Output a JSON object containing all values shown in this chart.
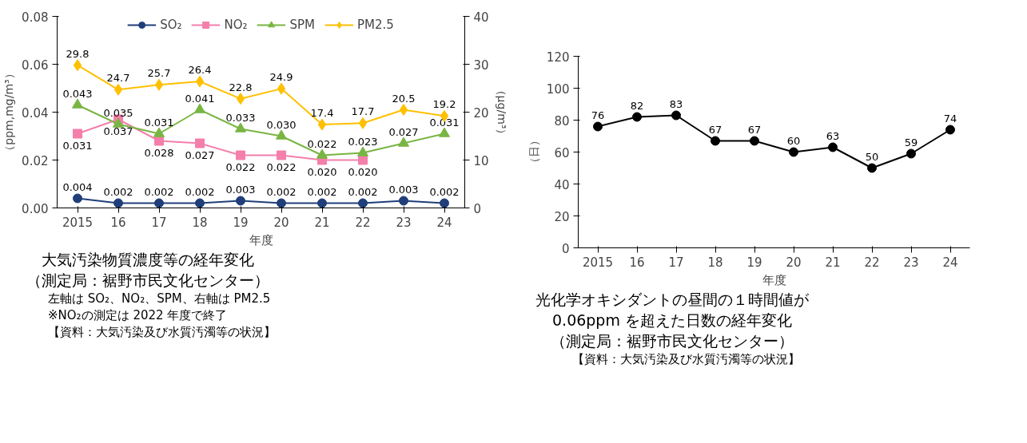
{
  "chart_data": [
    {
      "type": "line",
      "title": "大気汚染物質濃度等の経年変化",
      "subtitle": "（測定局：裾野市民文化センター）",
      "categories": [
        "2015",
        "16",
        "17",
        "18",
        "19",
        "20",
        "21",
        "22",
        "23",
        "24"
      ],
      "xlabel": "年度",
      "ylabel": "（ppm,mg/m³）",
      "y2label": "（μg/m³）",
      "ylim": [
        0,
        0.08
      ],
      "yticks": [
        {
          "value": 0,
          "label": "0.00"
        },
        {
          "value": 0.02,
          "label": "0.02"
        },
        {
          "value": 0.04,
          "label": "0.04"
        },
        {
          "value": 0.06,
          "label": "0.06"
        },
        {
          "value": 0.08,
          "label": "0.08"
        }
      ],
      "y2lim": [
        0,
        40
      ],
      "y2ticks": [
        0,
        10,
        20,
        30,
        40
      ],
      "grid": false,
      "legend": "top",
      "line_style": "solid",
      "series": [
        {
          "name": "SO₂",
          "color": "#203f7a",
          "marker": "circle",
          "values": [
            0.004,
            0.002,
            0.002,
            0.002,
            0.003,
            0.002,
            0.002,
            0.002,
            0.003,
            0.002
          ],
          "value_labels": [
            "0.004",
            "0.002",
            "0.002",
            "0.002",
            "0.003",
            "0.002",
            "0.002",
            "0.002",
            "0.003",
            "0.002"
          ]
        },
        {
          "name": "NO₂",
          "color": "#f47fab",
          "marker": "square",
          "values": [
            0.031,
            0.037,
            0.028,
            0.027,
            0.022,
            0.022,
            0.02,
            0.02,
            null,
            null
          ],
          "value_labels": [
            "0.031",
            "0.037",
            "0.028",
            "0.027",
            "0.022",
            "0.022",
            "0.020",
            "0.020",
            null,
            null
          ]
        },
        {
          "name": "SPM",
          "color": "#79b543",
          "marker": "triangle",
          "values": [
            0.043,
            0.035,
            0.031,
            0.041,
            0.033,
            0.03,
            0.022,
            0.023,
            0.027,
            0.031
          ],
          "value_labels": [
            "0.043",
            "0.035",
            "0.031",
            "0.041",
            "0.033",
            "0.030",
            "0.022",
            "0.023",
            "0.027",
            "0.031"
          ]
        },
        {
          "name": "PM2.5",
          "color": "#ffc000",
          "marker": "diamond",
          "axis": "y2",
          "values": [
            29.8,
            24.7,
            25.7,
            26.4,
            22.8,
            24.9,
            17.4,
            17.7,
            20.5,
            19.2
          ],
          "value_labels": [
            "29.8",
            "24.7",
            "25.7",
            "26.4",
            "22.8",
            "24.9",
            "17.4",
            "17.7",
            "20.5",
            "19.2"
          ]
        }
      ],
      "annotations": [
        "左軸は SO₂、NO₂、SPM、右軸は PM2.5",
        "※NO₂の測定は 2022 年度で終了",
        "【資料：大気汚染及び水質汚濁等の状況】"
      ]
    },
    {
      "type": "line",
      "title": "光化学オキシダントの昼間の１時間値が0.06ppm を超えた日数の経年変化",
      "subtitle": "（測定局：裾野市民文化センター）",
      "categories": [
        "2015",
        "16",
        "17",
        "18",
        "19",
        "20",
        "21",
        "22",
        "23",
        "24"
      ],
      "xlabel": "年度",
      "ylabel": "（日）",
      "ylim": [
        0,
        120
      ],
      "yticks": [
        0,
        20,
        40,
        60,
        80,
        100,
        120
      ],
      "grid": false,
      "legend": false,
      "marker": "circle",
      "line_style": "solid",
      "data_labels": true,
      "series": [
        {
          "color": "#000000",
          "values": [
            76,
            82,
            83,
            67,
            67,
            60,
            63,
            50,
            59,
            74
          ]
        }
      ],
      "annotations": [
        "【資料：大気汚染及び水質汚濁等の状況】"
      ]
    }
  ]
}
